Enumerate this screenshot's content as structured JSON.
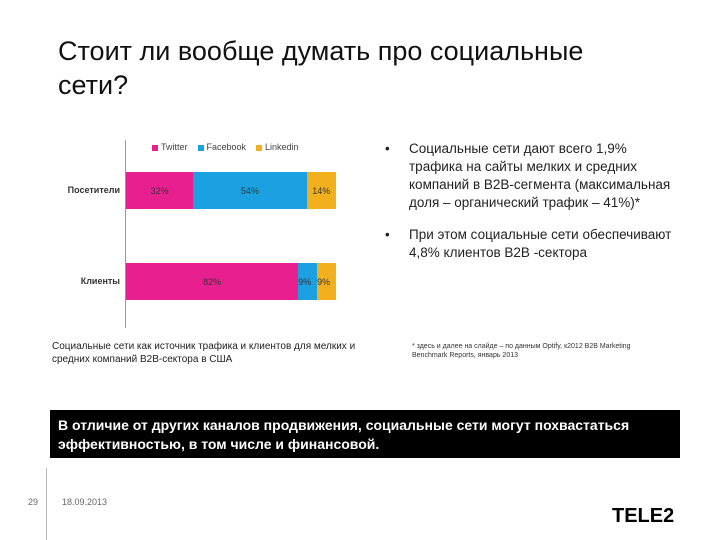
{
  "slide": {
    "title": "Стоит ли вообще думать про социальные сети?",
    "page_number": "29",
    "date": "18.09.2013",
    "logo_text": "TELE2"
  },
  "chart_data": {
    "type": "bar",
    "orientation": "horizontal-stacked",
    "categories": [
      "Посетители",
      "Клиенты"
    ],
    "series": [
      {
        "name": "Twitter",
        "color": "#e8208f",
        "values": [
          32,
          82
        ]
      },
      {
        "name": "Facebook",
        "color": "#1ba1e2",
        "values": [
          54,
          9
        ]
      },
      {
        "name": "Linkedin",
        "color": "#f2b01e",
        "values": [
          14,
          9
        ]
      }
    ],
    "value_labels": [
      [
        "32%",
        "54%",
        "14%"
      ],
      [
        "82%",
        "9%",
        "9%"
      ]
    ],
    "legend_position": "top",
    "caption": "Социальные сети как источник трафика и клиентов для мелких и средних компаний B2B-сектора в США"
  },
  "bullets": [
    "Социальные сети дают всего 1,9% трафика на сайты мелких и средних компаний в B2B-сегмента (максимальная доля – органический трафик – 41%)*",
    "При этом социальные сети обеспечивают 4,8% клиентов B2B -сектора"
  ],
  "bullet_marker": "•",
  "footnote": "* здесь и далее на слайде – по данным Optify, к2012 B2B Marketing Benchmark Reports, январь 2013",
  "banner": "В отличие от других каналов продвижения, социальные сети могут похвастаться эффективностью, в том числе и финансовой."
}
